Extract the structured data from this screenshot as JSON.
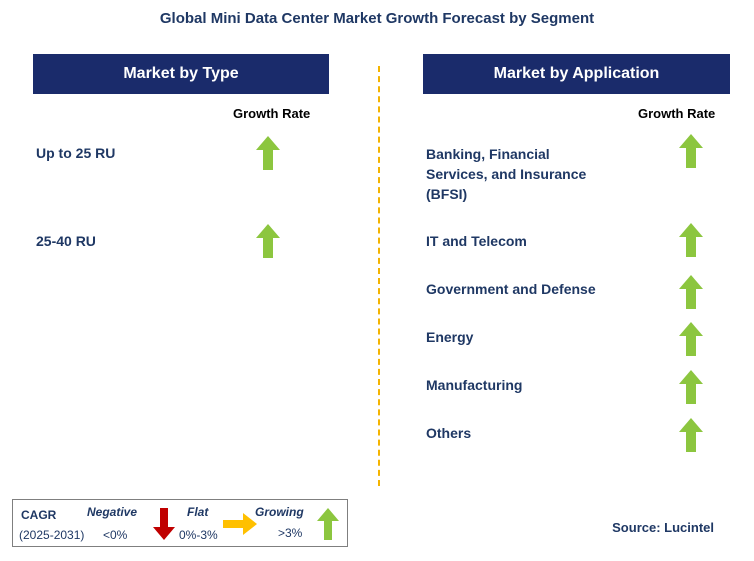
{
  "title": "Global Mini Data Center Market Growth Forecast by Segment",
  "left_panel": {
    "header": "Market by Type",
    "growth_label": "Growth Rate",
    "rows": [
      {
        "label": "Up to 25 RU",
        "trend": "growing"
      },
      {
        "label": "25-40 RU",
        "trend": "growing"
      }
    ]
  },
  "right_panel": {
    "header": "Market by Application",
    "growth_label": "Growth Rate",
    "rows": [
      {
        "label_lines": [
          "Banking, Financial",
          "Services, and Insurance",
          "(BFSI)"
        ],
        "trend": "growing"
      },
      {
        "label_lines": [
          "IT and Telecom"
        ],
        "trend": "growing"
      },
      {
        "label_lines": [
          "Government and Defense"
        ],
        "trend": "growing"
      },
      {
        "label_lines": [
          "Energy"
        ],
        "trend": "growing"
      },
      {
        "label_lines": [
          "Manufacturing"
        ],
        "trend": "growing"
      },
      {
        "label_lines": [
          "Others"
        ],
        "trend": "growing"
      }
    ]
  },
  "legend": {
    "cagr_label": "CAGR",
    "period": "(2025-2031)",
    "negative": {
      "label": "Negative",
      "range": "<0%"
    },
    "flat": {
      "label": "Flat",
      "range": "0%-3%"
    },
    "growing": {
      "label": "Growing",
      "range": ">3%"
    }
  },
  "source": "Source: Lucintel",
  "colors": {
    "header_bg": "#1a2b6b",
    "text": "#1f3864",
    "growing": "#8cc63f",
    "negative": "#c00000",
    "flat": "#ffc000",
    "divider": "#f4b400"
  }
}
